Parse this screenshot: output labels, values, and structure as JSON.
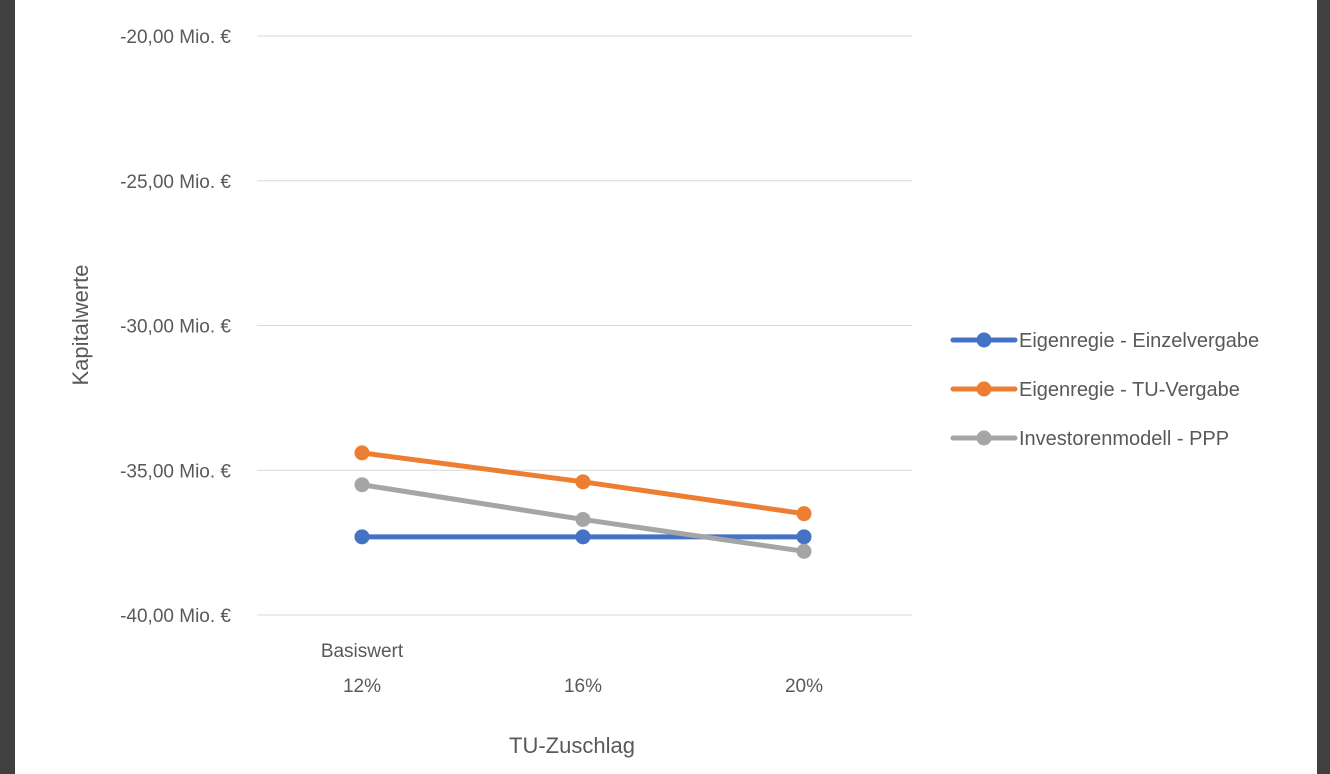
{
  "chart_data": {
    "type": "line",
    "xlabel": "TU-Zuschlag",
    "ylabel": "Kapitalwerte",
    "categories": [
      {
        "line1": "Basiswert",
        "line2": "12%"
      },
      {
        "line1": "",
        "line2": "16%"
      },
      {
        "line1": "",
        "line2": "20%"
      }
    ],
    "ylim": [
      -40,
      -20
    ],
    "y_ticks": [
      -20,
      -25,
      -30,
      -35,
      -40
    ],
    "y_tick_labels": [
      "-20,00 Mio. €",
      "-25,00 Mio. €",
      "-30,00 Mio. €",
      "-35,00 Mio. €",
      "-40,00 Mio. €"
    ],
    "grid": true,
    "legend_position": "right",
    "series": [
      {
        "name": "Eigenregie - Einzelvergabe",
        "color": "#4472C4",
        "values": [
          -37.3,
          -37.3,
          -37.3
        ]
      },
      {
        "name": "Eigenregie - TU-Vergabe",
        "color": "#ED7D31",
        "values": [
          -34.4,
          -35.4,
          -36.5
        ]
      },
      {
        "name": "Investorenmodell - PPP",
        "color": "#A5A5A5",
        "values": [
          -35.5,
          -36.7,
          -37.8
        ]
      }
    ]
  }
}
